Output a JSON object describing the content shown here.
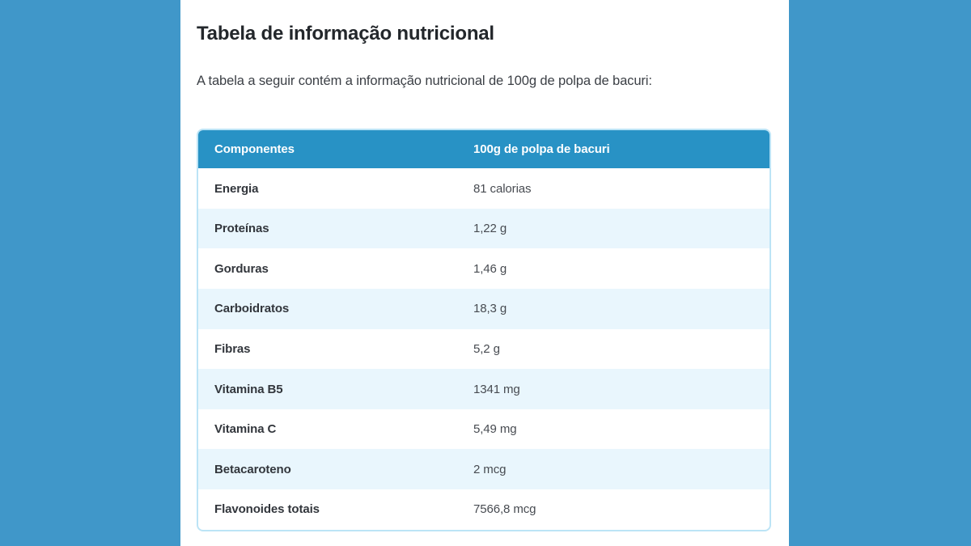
{
  "page": {
    "title": "Tabela de informação nutricional",
    "intro": "A tabela a seguir contém a informação nutricional de 100g de polpa de bacuri:"
  },
  "table": {
    "headers": [
      "Componentes",
      "100g de polpa de bacuri"
    ],
    "rows": [
      {
        "component": "Energia",
        "value": "81 calorias"
      },
      {
        "component": "Proteínas",
        "value": "1,22 g"
      },
      {
        "component": "Gorduras",
        "value": "1,46 g"
      },
      {
        "component": "Carboidratos",
        "value": "18,3 g"
      },
      {
        "component": "Fibras",
        "value": "5,2 g"
      },
      {
        "component": "Vitamina B5",
        "value": "1341 mg"
      },
      {
        "component": "Vitamina C",
        "value": "5,49 mg"
      },
      {
        "component": "Betacaroteno",
        "value": "2 mcg"
      },
      {
        "component": "Flavonoides totais",
        "value": "7566,8 mcg"
      }
    ]
  },
  "colors": {
    "side_background_blue": "#4097C9",
    "table_header_blue": "#2892C5",
    "row_alternate_blue": "#E9F6FD",
    "table_border_blue": "#BCE4F6",
    "title_text": "#23272B",
    "body_text": "#3B3F45"
  }
}
